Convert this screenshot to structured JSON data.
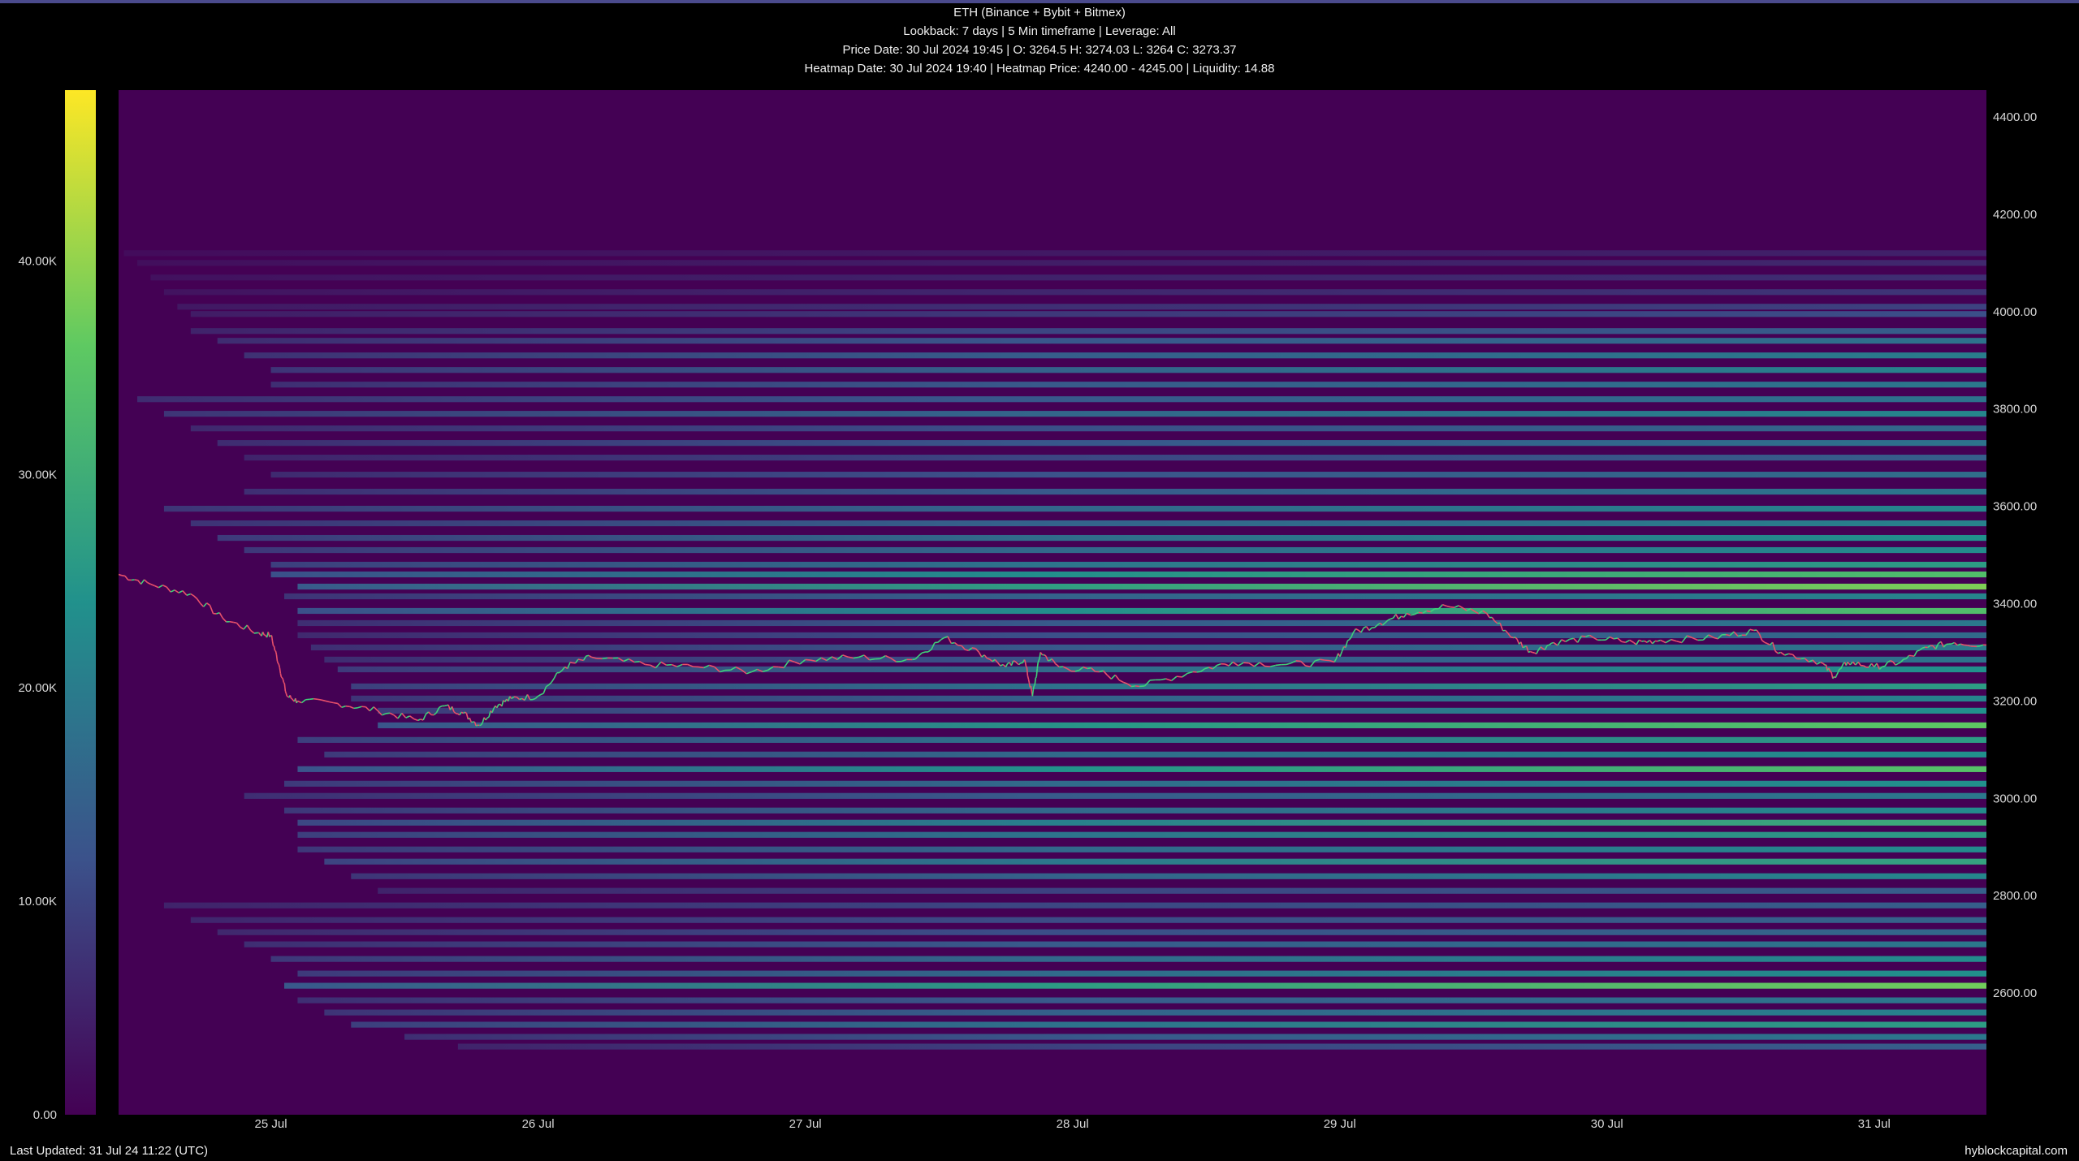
{
  "header": {
    "title": "ETH (Binance + Bybit + Bitmex)",
    "line2": "Lookback: 7 days | 5 Min timeframe | Leverage: All",
    "line3": "Price Date: 30 Jul 2024 19:45 | O: 3264.5 H: 3274.03 L: 3264 C: 3273.37",
    "line4": "Heatmap Date: 30 Jul 2024 19:40 | Heatmap Price: 4240.00 - 4245.00 | Liquidity: 14.88"
  },
  "footer": {
    "last_updated": "Last Updated: 31 Jul 24 11:22 (UTC)",
    "brand": "hyblockcapital.com"
  },
  "colors": {
    "background": "#000000",
    "heatmap_base": "#440154",
    "price_up": "#3fd17a",
    "price_down": "#e8506a",
    "scale": [
      "#440154",
      "#3b528b",
      "#21918c",
      "#5ec962",
      "#fde725"
    ]
  },
  "chart_data": {
    "type": "heatmap",
    "title": "ETH (Binance + Bybit + Bitmex)",
    "x_ticks": [
      "25 Jul",
      "26 Jul",
      "27 Jul",
      "28 Jul",
      "29 Jul",
      "30 Jul",
      "31 Jul"
    ],
    "x_range_days": [
      24.43,
      31.42
    ],
    "y_ticks": [
      "4400.00",
      "4200.00",
      "4000.00",
      "3800.00",
      "3600.00",
      "3400.00",
      "3200.00",
      "3000.00",
      "2800.00",
      "2600.00"
    ],
    "y_range": [
      2350,
      4455
    ],
    "colorbar": {
      "ticks": [
        "0.00",
        "10.00K",
        "20.00K",
        "30.00K",
        "40.00K"
      ],
      "range": [
        0,
        48000
      ]
    },
    "liquidity_bands": [
      {
        "price": 4120,
        "start": 24.45,
        "intensity": 0.1
      },
      {
        "price": 4100,
        "start": 24.5,
        "intensity": 0.12
      },
      {
        "price": 4070,
        "start": 24.55,
        "intensity": 0.14
      },
      {
        "price": 4040,
        "start": 24.6,
        "intensity": 0.16
      },
      {
        "price": 4010,
        "start": 24.65,
        "intensity": 0.2
      },
      {
        "price": 3995,
        "start": 24.7,
        "intensity": 0.24
      },
      {
        "price": 3960,
        "start": 24.7,
        "intensity": 0.3
      },
      {
        "price": 3940,
        "start": 24.8,
        "intensity": 0.38
      },
      {
        "price": 3910,
        "start": 24.9,
        "intensity": 0.42
      },
      {
        "price": 3880,
        "start": 25.0,
        "intensity": 0.45
      },
      {
        "price": 3850,
        "start": 25.0,
        "intensity": 0.4
      },
      {
        "price": 3820,
        "start": 24.5,
        "intensity": 0.38
      },
      {
        "price": 3790,
        "start": 24.6,
        "intensity": 0.46
      },
      {
        "price": 3760,
        "start": 24.7,
        "intensity": 0.34
      },
      {
        "price": 3730,
        "start": 24.8,
        "intensity": 0.38
      },
      {
        "price": 3700,
        "start": 24.9,
        "intensity": 0.3
      },
      {
        "price": 3665,
        "start": 25.0,
        "intensity": 0.36
      },
      {
        "price": 3630,
        "start": 24.9,
        "intensity": 0.4
      },
      {
        "price": 3595,
        "start": 24.6,
        "intensity": 0.46
      },
      {
        "price": 3565,
        "start": 24.7,
        "intensity": 0.44
      },
      {
        "price": 3535,
        "start": 24.8,
        "intensity": 0.5
      },
      {
        "price": 3510,
        "start": 24.9,
        "intensity": 0.48
      },
      {
        "price": 3480,
        "start": 25.0,
        "intensity": 0.55
      },
      {
        "price": 3460,
        "start": 25.0,
        "intensity": 0.7
      },
      {
        "price": 3435,
        "start": 25.1,
        "intensity": 0.8
      },
      {
        "price": 3415,
        "start": 25.05,
        "intensity": 0.45
      },
      {
        "price": 3385,
        "start": 25.1,
        "intensity": 0.7
      },
      {
        "price": 3360,
        "start": 25.1,
        "intensity": 0.4
      },
      {
        "price": 3335,
        "start": 25.1,
        "intensity": 0.35
      },
      {
        "price": 3310,
        "start": 25.15,
        "intensity": 0.4
      },
      {
        "price": 3285,
        "start": 25.2,
        "intensity": 0.38
      },
      {
        "price": 3265,
        "start": 25.25,
        "intensity": 0.5
      },
      {
        "price": 3230,
        "start": 25.3,
        "intensity": 0.55
      },
      {
        "price": 3205,
        "start": 25.3,
        "intensity": 0.45
      },
      {
        "price": 3180,
        "start": 25.4,
        "intensity": 0.5
      },
      {
        "price": 3150,
        "start": 25.4,
        "intensity": 0.75
      },
      {
        "price": 3120,
        "start": 25.1,
        "intensity": 0.55
      },
      {
        "price": 3090,
        "start": 25.2,
        "intensity": 0.5
      },
      {
        "price": 3060,
        "start": 25.1,
        "intensity": 0.72
      },
      {
        "price": 3030,
        "start": 25.05,
        "intensity": 0.5
      },
      {
        "price": 3005,
        "start": 24.9,
        "intensity": 0.4
      },
      {
        "price": 2975,
        "start": 25.05,
        "intensity": 0.48
      },
      {
        "price": 2950,
        "start": 25.1,
        "intensity": 0.62
      },
      {
        "price": 2925,
        "start": 25.1,
        "intensity": 0.55
      },
      {
        "price": 2895,
        "start": 25.1,
        "intensity": 0.48
      },
      {
        "price": 2870,
        "start": 25.2,
        "intensity": 0.58
      },
      {
        "price": 2840,
        "start": 25.3,
        "intensity": 0.46
      },
      {
        "price": 2810,
        "start": 25.4,
        "intensity": 0.3
      },
      {
        "price": 2780,
        "start": 24.6,
        "intensity": 0.3
      },
      {
        "price": 2750,
        "start": 24.7,
        "intensity": 0.32
      },
      {
        "price": 2725,
        "start": 24.8,
        "intensity": 0.34
      },
      {
        "price": 2700,
        "start": 24.9,
        "intensity": 0.4
      },
      {
        "price": 2670,
        "start": 25.0,
        "intensity": 0.48
      },
      {
        "price": 2640,
        "start": 25.1,
        "intensity": 0.5
      },
      {
        "price": 2615,
        "start": 25.05,
        "intensity": 0.78
      },
      {
        "price": 2585,
        "start": 25.1,
        "intensity": 0.4
      },
      {
        "price": 2560,
        "start": 25.2,
        "intensity": 0.45
      },
      {
        "price": 2535,
        "start": 25.3,
        "intensity": 0.55
      },
      {
        "price": 2510,
        "start": 25.5,
        "intensity": 0.4
      },
      {
        "price": 2490,
        "start": 25.7,
        "intensity": 0.3
      }
    ],
    "price_series": {
      "x": [
        24.43,
        24.55,
        24.7,
        24.82,
        24.95,
        25.0,
        25.03,
        25.06,
        25.1,
        25.25,
        25.4,
        25.55,
        25.65,
        25.72,
        25.78,
        25.84,
        25.9,
        26.0,
        26.1,
        26.2,
        26.4,
        26.6,
        26.8,
        27.0,
        27.2,
        27.4,
        27.52,
        27.65,
        27.75,
        27.82,
        27.85,
        27.88,
        27.95,
        28.1,
        28.25,
        28.45,
        28.6,
        28.8,
        28.98,
        29.05,
        29.15,
        29.25,
        29.4,
        29.55,
        29.65,
        29.72,
        29.8,
        29.95,
        30.1,
        30.2,
        30.4,
        30.55,
        30.65,
        30.8,
        30.85,
        30.9,
        31.0,
        31.1,
        31.2,
        31.3,
        31.42
      ],
      "y": [
        3460,
        3440,
        3420,
        3370,
        3340,
        3335,
        3275,
        3210,
        3200,
        3195,
        3180,
        3160,
        3190,
        3175,
        3150,
        3190,
        3205,
        3210,
        3270,
        3290,
        3275,
        3270,
        3260,
        3285,
        3290,
        3285,
        3330,
        3300,
        3270,
        3285,
        3210,
        3300,
        3270,
        3260,
        3230,
        3260,
        3280,
        3275,
        3280,
        3340,
        3360,
        3380,
        3395,
        3380,
        3330,
        3300,
        3320,
        3330,
        3320,
        3325,
        3330,
        3345,
        3300,
        3280,
        3250,
        3280,
        3270,
        3280,
        3310,
        3320,
        3315
      ]
    }
  }
}
